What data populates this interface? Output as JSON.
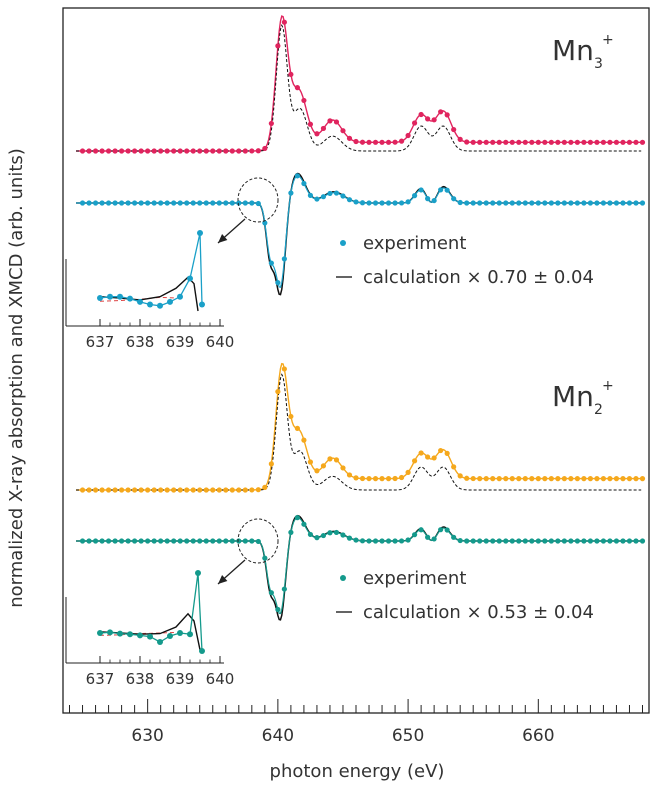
{
  "chart_data": {
    "type": "line",
    "xlabel": "photon energy (eV)",
    "ylabel": "normalized X-ray absorption and XMCD (arb. units)",
    "xlim": [
      623.5,
      668.5
    ],
    "xticks": [
      630,
      640,
      650,
      660
    ],
    "grid": false,
    "panels": [
      {
        "ion": "Mn",
        "ion_sub": "3",
        "ion_sup": "+",
        "series_colors": {
          "absorption": "#e0245e",
          "xmcd": "#1aa0c8"
        },
        "legend": {
          "experiment": "experiment",
          "calculation": "calculation × 0.70 ± 0.04"
        },
        "inset": {
          "xlim": [
            636.7,
            640.1
          ],
          "xticks": [
            "637",
            "638",
            "639",
            "640"
          ],
          "experiment": [
            [
              637.0,
              0.0
            ],
            [
              637.25,
              0.02
            ],
            [
              637.5,
              0.02
            ],
            [
              637.75,
              -0.01
            ],
            [
              638.0,
              -0.06
            ],
            [
              638.25,
              -0.1
            ],
            [
              638.5,
              -0.12
            ],
            [
              638.75,
              -0.06
            ],
            [
              639.0,
              0.02
            ],
            [
              639.25,
              0.3
            ],
            [
              639.5,
              1.0
            ],
            [
              639.55,
              -0.1
            ]
          ],
          "calculation": [
            [
              637.0,
              0.02
            ],
            [
              637.5,
              0.0
            ],
            [
              638.0,
              -0.03
            ],
            [
              638.5,
              0.02
            ],
            [
              638.9,
              0.15
            ],
            [
              639.2,
              0.32
            ],
            [
              639.35,
              0.22
            ],
            [
              639.45,
              -0.2
            ]
          ],
          "dashed": [
            [
              637.0,
              -0.05
            ],
            [
              637.5,
              -0.04
            ],
            [
              638.0,
              -0.02
            ],
            [
              638.5,
              0.01
            ],
            [
              638.9,
              0.0
            ]
          ]
        }
      },
      {
        "ion": "Mn",
        "ion_sub": "2",
        "ion_sup": "+",
        "series_colors": {
          "absorption": "#f5a81c",
          "xmcd": "#149a8c"
        },
        "legend": {
          "experiment": "experiment",
          "calculation": "calculation × 0.53 ± 0.04"
        },
        "inset": {
          "xlim": [
            636.7,
            640.1
          ],
          "xticks": [
            "637",
            "638",
            "639",
            "640"
          ],
          "experiment": [
            [
              637.0,
              0.0
            ],
            [
              637.25,
              0.01
            ],
            [
              637.5,
              -0.01
            ],
            [
              637.75,
              -0.02
            ],
            [
              638.0,
              -0.04
            ],
            [
              638.25,
              -0.06
            ],
            [
              638.5,
              -0.15
            ],
            [
              638.75,
              -0.05
            ],
            [
              639.0,
              0.0
            ],
            [
              639.25,
              -0.02
            ],
            [
              639.45,
              1.0
            ],
            [
              639.55,
              -0.3
            ]
          ],
          "calculation": [
            [
              637.0,
              0.02
            ],
            [
              637.5,
              0.0
            ],
            [
              638.0,
              -0.02
            ],
            [
              638.5,
              -0.01
            ],
            [
              638.9,
              0.1
            ],
            [
              639.2,
              0.32
            ],
            [
              639.35,
              0.2
            ],
            [
              639.5,
              -0.28
            ]
          ],
          "dashed": [
            [
              637.0,
              -0.04
            ],
            [
              637.5,
              -0.03
            ],
            [
              638.0,
              -0.01
            ],
            [
              638.5,
              0.0
            ],
            [
              638.9,
              0.01
            ]
          ]
        }
      }
    ]
  }
}
